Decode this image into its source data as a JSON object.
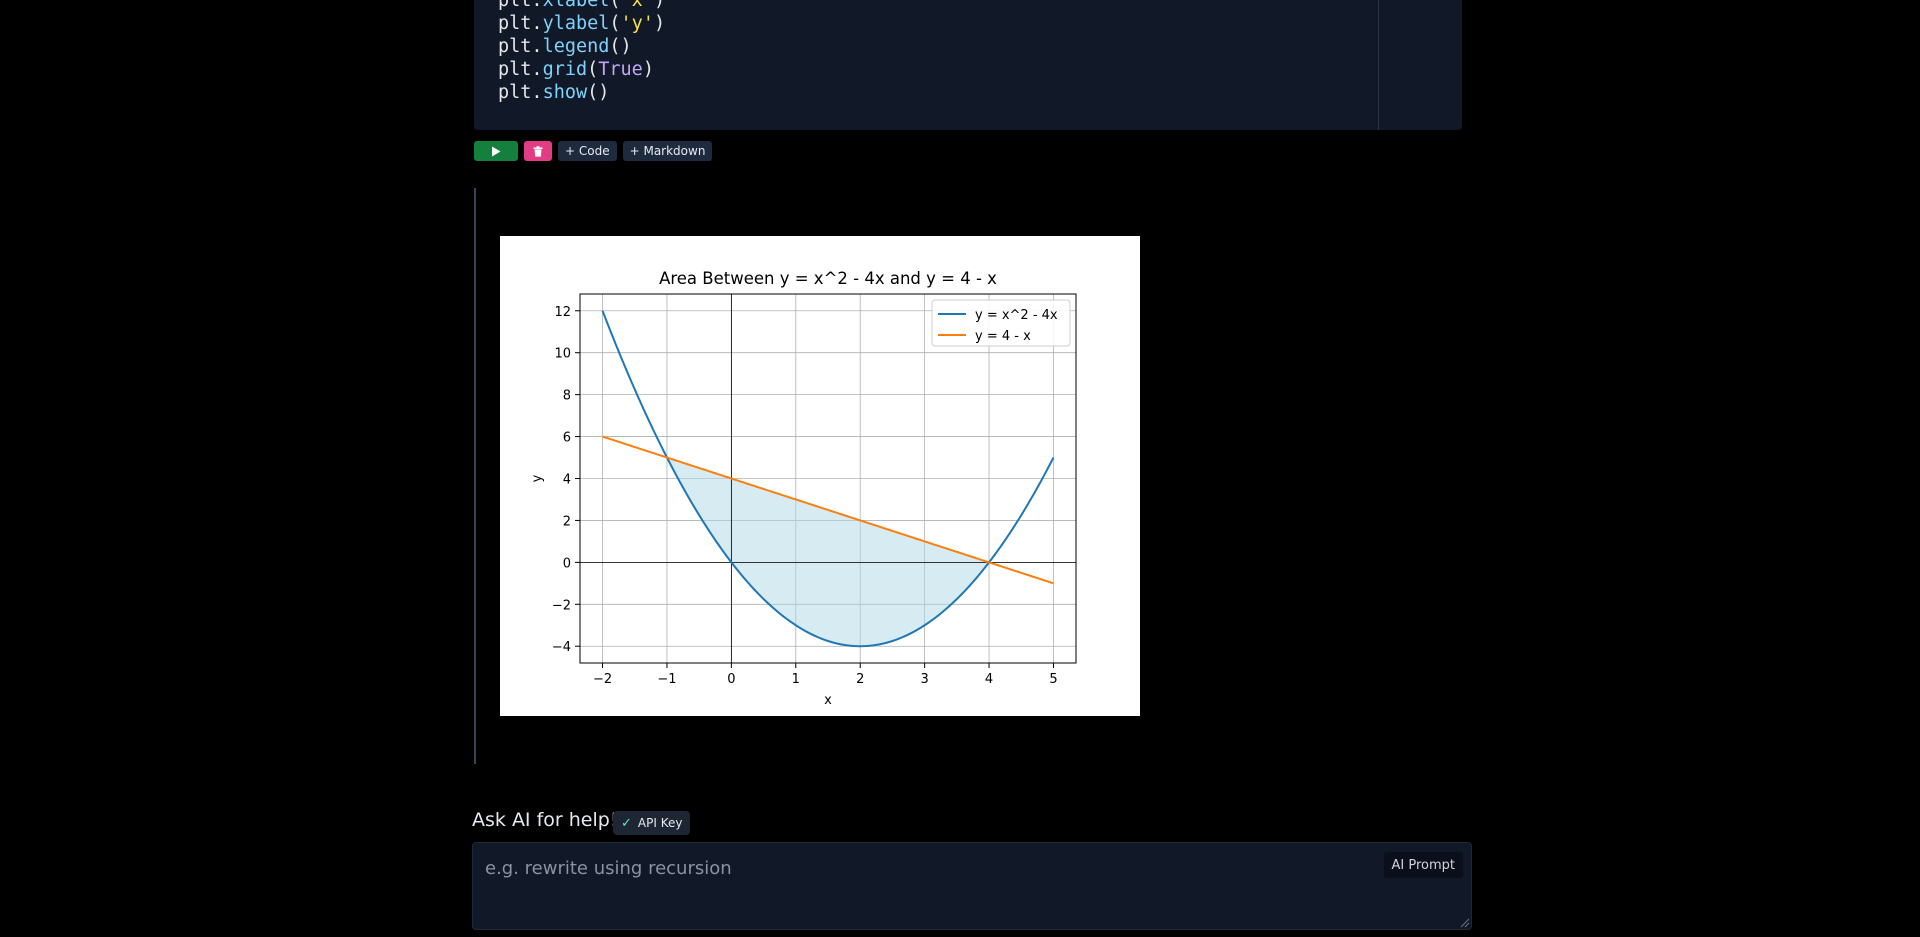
{
  "code_cell": {
    "lines": [
      [
        {
          "t": "plt.",
          "c": ""
        },
        {
          "t": "xlabel",
          "c": "fn"
        },
        {
          "t": "(",
          "c": ""
        },
        {
          "t": "'x'",
          "c": "str"
        },
        {
          "t": ")",
          "c": ""
        }
      ],
      [
        {
          "t": "plt.",
          "c": ""
        },
        {
          "t": "ylabel",
          "c": "fn"
        },
        {
          "t": "(",
          "c": ""
        },
        {
          "t": "'y'",
          "c": "str"
        },
        {
          "t": ")",
          "c": ""
        }
      ],
      [
        {
          "t": "plt.",
          "c": ""
        },
        {
          "t": "legend",
          "c": "fn"
        },
        {
          "t": "()",
          "c": ""
        }
      ],
      [
        {
          "t": "plt.",
          "c": ""
        },
        {
          "t": "grid",
          "c": "fn"
        },
        {
          "t": "(",
          "c": ""
        },
        {
          "t": "True",
          "c": "kw"
        },
        {
          "t": ")",
          "c": ""
        }
      ],
      [
        {
          "t": "plt.",
          "c": ""
        },
        {
          "t": "show",
          "c": "fn"
        },
        {
          "t": "()",
          "c": ""
        }
      ]
    ]
  },
  "toolbar": {
    "run_icon": "play-icon",
    "delete_icon": "trash-icon",
    "add_code_label": "+ Code",
    "add_markdown_label": "+ Markdown"
  },
  "chart_data": {
    "type": "line",
    "title": "Area Between y = x^2 - 4x and y = 4 - x",
    "xlabel": "x",
    "ylabel": "y",
    "xlim": [
      -2.35,
      5.35
    ],
    "ylim": [
      -4.8,
      12.8
    ],
    "xticks": [
      -2,
      -1,
      0,
      1,
      2,
      3,
      4,
      5
    ],
    "yticks": [
      -4,
      -2,
      0,
      2,
      4,
      6,
      8,
      10,
      12
    ],
    "grid": true,
    "legend_position": "top-right",
    "series": [
      {
        "name": "y = x^2 - 4x",
        "color": "#1f77b4",
        "x_range": [
          -2,
          5
        ],
        "expression": "x^2 - 4x"
      },
      {
        "name": "y = 4 - x",
        "color": "#ff7f0e",
        "x_range": [
          -2,
          5
        ],
        "expression": "4 - x"
      }
    ],
    "fill_between": {
      "x_range": [
        -1,
        4
      ],
      "color": "#add8e6",
      "alpha": 0.5
    },
    "reference_lines": {
      "x": 0,
      "y": 0,
      "color": "#000000"
    }
  },
  "ai": {
    "title": "Ask AI for help!",
    "api_key_label": "API Key",
    "placeholder": "e.g. rewrite using recursion",
    "value": "",
    "prompt_button_label": "AI Prompt"
  }
}
